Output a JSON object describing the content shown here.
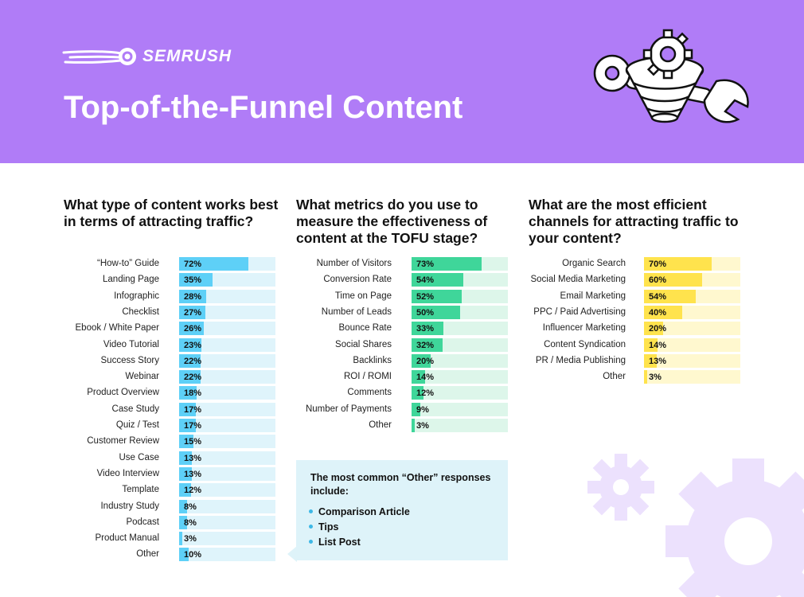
{
  "brand": {
    "logo_text": "SEMRUSH"
  },
  "page": {
    "title": "Top-of-the-Funnel Content"
  },
  "colors": {
    "header_bg": "#b07cf7",
    "blue_fill": "#5ed0f7",
    "blue_track": "#dff4fb",
    "green_fill": "#3fd69a",
    "green_track": "#ddf6ea",
    "yellow_fill": "#ffe34d",
    "yellow_track": "#fff8cf",
    "note_bg": "#def3f9"
  },
  "chart_data": [
    {
      "type": "bar",
      "title": "What type of content works best in terms of attracting traffic?",
      "categories": [
        "“How-to” Guide",
        "Landing Page",
        "Infographic",
        "Checklist",
        "Ebook / White Paper",
        "Video Tutorial",
        "Success Story",
        "Webinar",
        "Product Overview",
        "Case Study",
        "Quiz / Test",
        "Customer Review",
        "Use Case",
        "Video Interview",
        "Template",
        "Industry Study",
        "Podcast",
        "Product Manual",
        "Other"
      ],
      "values": [
        72,
        35,
        28,
        27,
        26,
        23,
        22,
        22,
        18,
        17,
        17,
        15,
        13,
        13,
        12,
        8,
        8,
        3,
        10
      ],
      "value_labels": [
        "72%",
        "35%",
        "28%",
        "27%",
        "26%",
        "23%",
        "22%",
        "22%",
        "18%",
        "17%",
        "17%",
        "15%",
        "13%",
        "13%",
        "12%",
        "8%",
        "8%",
        "3%",
        "10%"
      ],
      "xlim": [
        0,
        100
      ],
      "orientation": "horizontal",
      "color": "blue"
    },
    {
      "type": "bar",
      "title": "What metrics do you use to measure the effectiveness of content at the TOFU stage?",
      "categories": [
        "Number of Visitors",
        "Conversion Rate",
        "Time on Page",
        "Number of Leads",
        "Bounce Rate",
        "Social Shares",
        "Backlinks",
        "ROI / ROMI",
        "Comments",
        "Number of Payments",
        "Other"
      ],
      "values": [
        73,
        54,
        52,
        50,
        33,
        32,
        20,
        14,
        12,
        9,
        3
      ],
      "value_labels": [
        "73%",
        "54%",
        "52%",
        "50%",
        "33%",
        "32%",
        "20%",
        "14%",
        "12%",
        "9%",
        "3%"
      ],
      "xlim": [
        0,
        100
      ],
      "orientation": "horizontal",
      "color": "green"
    },
    {
      "type": "bar",
      "title": "What are the most efficient channels for attracting traffic to your content?",
      "categories": [
        "Organic Search",
        "Social Media Marketing",
        "Email Marketing",
        "PPC / Paid Advertising",
        "Influencer Marketing",
        "Content Syndication",
        "PR / Media Publishing",
        "Other"
      ],
      "values": [
        70,
        60,
        54,
        40,
        20,
        14,
        13,
        3
      ],
      "value_labels": [
        "70%",
        "60%",
        "54%",
        "40%",
        "20%",
        "14%",
        "13%",
        "3%"
      ],
      "xlim": [
        0,
        100
      ],
      "orientation": "horizontal",
      "color": "yellow"
    }
  ],
  "note": {
    "title": "The most common “Other” responses include:",
    "items": [
      "Comparison Article",
      "Tips",
      "List Post"
    ]
  }
}
